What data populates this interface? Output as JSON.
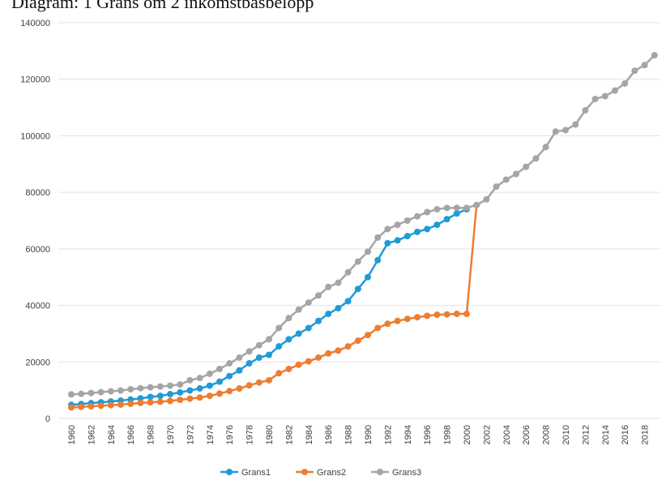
{
  "chart_data": {
    "type": "line",
    "title": "Diagram: 1 Gräns om 2 inkomstbasbelopp",
    "categories": [
      "1960",
      null,
      "1962",
      null,
      "1964",
      null,
      "1966",
      null,
      "1968",
      null,
      "1970",
      null,
      "1972",
      null,
      "1974",
      null,
      "1976",
      null,
      "1978",
      null,
      "1980",
      null,
      "1982",
      null,
      "1984",
      null,
      "1986",
      null,
      "1988",
      null,
      "1990",
      null,
      "1992",
      null,
      "1994",
      null,
      "1996",
      null,
      "1998",
      null,
      "2000",
      null,
      "2002",
      null,
      "2004",
      null,
      "2006",
      null,
      "2008",
      null,
      "2010",
      null,
      "2012",
      null,
      "2014",
      null,
      "2016",
      null,
      "2018",
      null
    ],
    "series": [
      {
        "name": "Grans1",
        "color": "#1f9bd7",
        "values": [
          4800,
          5100,
          5400,
          5700,
          6000,
          6300,
          6700,
          7100,
          7600,
          8000,
          8600,
          9200,
          9900,
          10600,
          11600,
          13000,
          15000,
          17000,
          19500,
          21500,
          22500,
          25500,
          28000,
          30000,
          32000,
          34500,
          37000,
          39000,
          41500,
          45800,
          50000,
          56000,
          62000,
          63000,
          64500,
          66000,
          67000,
          68500,
          70500,
          72500,
          74000,
          null,
          null,
          null,
          null,
          null,
          null,
          null,
          null,
          null,
          null,
          null,
          null,
          null,
          null,
          null,
          null,
          null,
          null,
          null
        ]
      },
      {
        "name": "Grans2",
        "color": "#ed7d31",
        "values": [
          3900,
          4100,
          4300,
          4500,
          4700,
          4900,
          5200,
          5500,
          5700,
          5900,
          6200,
          6600,
          7000,
          7400,
          8000,
          8800,
          9700,
          10600,
          11700,
          12700,
          13500,
          16000,
          17500,
          19000,
          20200,
          21500,
          23000,
          24000,
          25500,
          27500,
          29500,
          32000,
          33500,
          34500,
          35200,
          35800,
          36300,
          36700,
          36800,
          37000,
          37000,
          75500,
          null,
          null,
          null,
          null,
          null,
          null,
          null,
          null,
          null,
          null,
          null,
          null,
          null,
          null,
          null,
          null,
          null,
          null
        ]
      },
      {
        "name": "Grans3",
        "color": "#a5a5a5",
        "values": [
          8500,
          8700,
          9000,
          9300,
          9600,
          9900,
          10300,
          10700,
          11000,
          11300,
          11600,
          12000,
          13500,
          14300,
          15800,
          17500,
          19500,
          21500,
          23700,
          25900,
          28000,
          32000,
          35500,
          38500,
          41000,
          43500,
          46500,
          48000,
          51700,
          55500,
          59000,
          64000,
          67000,
          68500,
          70000,
          71500,
          73000,
          74000,
          74500,
          74500,
          74500,
          75500,
          77500,
          82000,
          84500,
          86500,
          89000,
          92000,
          96000,
          101500,
          102000,
          104000,
          109000,
          113000,
          114000,
          116000,
          118500,
          123000,
          125000,
          128500
        ]
      }
    ],
    "ylim": [
      0,
      140000
    ],
    "yticks": [
      0,
      20000,
      40000,
      60000,
      80000,
      100000,
      120000,
      140000
    ],
    "grid": true
  }
}
